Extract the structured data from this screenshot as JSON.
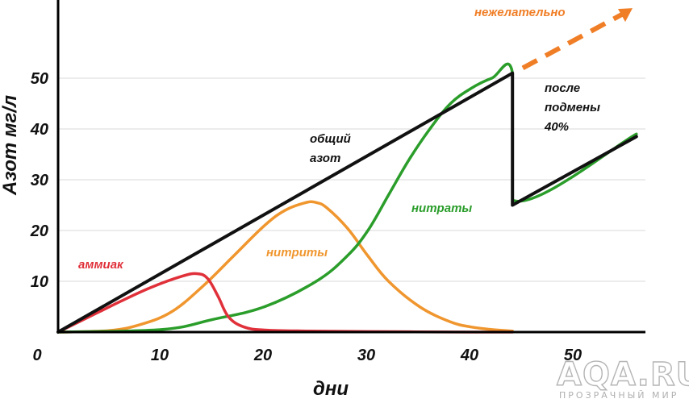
{
  "chart_data": {
    "type": "line",
    "ylabel": "Азот мг/л",
    "xlabel": "дни",
    "xlim": [
      0,
      56
    ],
    "ylim": [
      0,
      60
    ],
    "x_ticks": [
      0,
      10,
      20,
      30,
      40,
      50
    ],
    "y_ticks": [
      10,
      20,
      30,
      40,
      50
    ],
    "grid": "horizontal",
    "series": [
      {
        "name": "общий азот",
        "color": "#111111",
        "x": [
          0,
          44,
          44,
          56
        ],
        "y": [
          0,
          51,
          25,
          38.5
        ]
      },
      {
        "name": "аммиак",
        "color": "#e0303a",
        "x": [
          0,
          3,
          6,
          9,
          12,
          13.5,
          14.5,
          15.5,
          16.5,
          18,
          20,
          24,
          30,
          40,
          44
        ],
        "y": [
          0,
          3,
          6,
          8.8,
          11,
          11.5,
          10.5,
          7,
          3,
          1,
          0.4,
          0.2,
          0.1,
          0,
          0
        ]
      },
      {
        "name": "нитриты",
        "color": "#f0962e",
        "x": [
          0,
          5,
          8,
          11,
          14,
          17,
          20,
          22,
          24,
          25,
          26,
          28,
          30,
          32,
          35,
          38,
          40,
          42,
          44
        ],
        "y": [
          0,
          0.3,
          1.5,
          4,
          9,
          15,
          21,
          24,
          25.5,
          25.5,
          24.5,
          20.5,
          15,
          10,
          5,
          2,
          1,
          0.5,
          0.2
        ]
      },
      {
        "name": "нитраты",
        "color": "#2a9d2a",
        "x": [
          0,
          10,
          15,
          20,
          25,
          28,
          30,
          32,
          34,
          36,
          38,
          40,
          42,
          44,
          44,
          56
        ],
        "y": [
          0,
          0.5,
          2.5,
          5,
          10,
          15,
          20,
          27,
          34,
          40,
          45,
          48,
          50,
          51,
          26,
          39
        ]
      }
    ],
    "trend": {
      "name": "нежелательно",
      "color": "#f07e26",
      "x": [
        45,
        55
      ],
      "y": [
        52,
        63
      ]
    },
    "annotations": {
      "obshiy_line1": "общий",
      "obshiy_line2": "азот",
      "posle_line1": "после",
      "posle_line2": "подмены",
      "posle_line3": "40%"
    },
    "watermark": {
      "main": "AQA.RU",
      "sub": "ПРОЗРАЧНЫЙ МИР"
    }
  }
}
